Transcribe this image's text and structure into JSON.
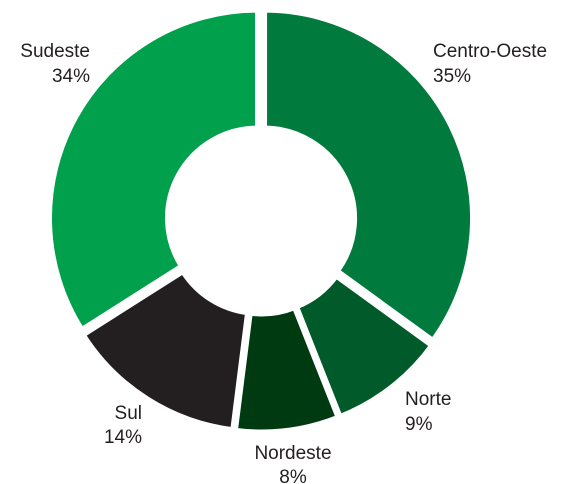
{
  "chart_data": {
    "type": "pie",
    "donut": true,
    "start": "12 o'clock",
    "direction": "clockwise",
    "legend": "none",
    "slices": [
      {
        "label": "Centro-Oeste",
        "value": 35,
        "display": "35%",
        "color": "#007A3D"
      },
      {
        "label": "Norte",
        "value": 9,
        "display": "9%",
        "color": "#005A29"
      },
      {
        "label": "Nordeste",
        "value": 8,
        "display": "8%",
        "color": "#003A10"
      },
      {
        "label": "Sul",
        "value": 14,
        "display": "14%",
        "color": "#231F20"
      },
      {
        "label": "Sudeste",
        "value": 34,
        "display": "34%",
        "color": "#00A04C"
      }
    ]
  }
}
